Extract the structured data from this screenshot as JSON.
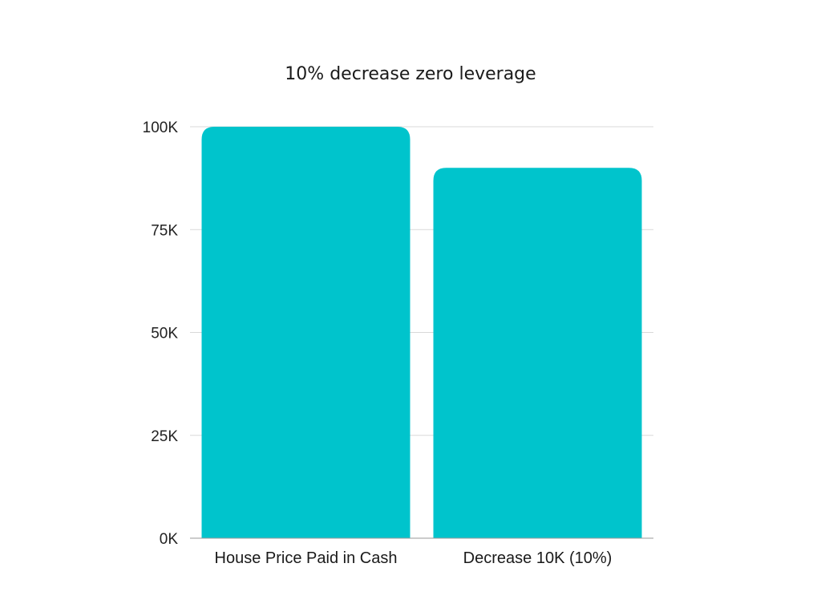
{
  "chart_data": {
    "type": "bar",
    "title": "10% decrease zero leverage",
    "xlabel": "",
    "ylabel": "",
    "categories": [
      "House Price Paid in Cash",
      "Decrease 10K (10%)"
    ],
    "values": [
      100000,
      90000
    ],
    "ylim": [
      0,
      100000
    ],
    "yticks": [
      0,
      25000,
      50000,
      75000,
      100000
    ],
    "ytick_labels": [
      "0K",
      "25K",
      "50K",
      "75K",
      "100K"
    ],
    "grid": true,
    "legend": "none",
    "bar_color": "#00c4cc"
  }
}
